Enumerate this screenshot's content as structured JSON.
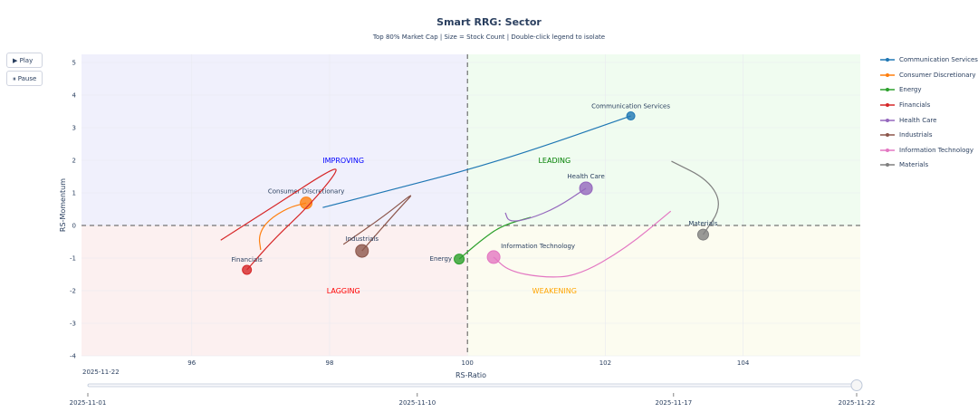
{
  "chart_data": {
    "type": "scatter",
    "title": "Smart RRG: Sector",
    "subtitle": "Top 80% Market Cap | Size = Stock Count | Double-click legend to isolate",
    "xlabel": "RS-Ratio",
    "ylabel": "RS-Momentum",
    "xlim": [
      94.4,
      105.7
    ],
    "ylim": [
      -4,
      5.25
    ],
    "xticks": [
      96,
      98,
      100,
      102,
      104
    ],
    "yticks": [
      -4,
      -3,
      -2,
      -1,
      0,
      1,
      2,
      3,
      4,
      5
    ],
    "quadrants": [
      {
        "label": "IMPROVING",
        "color": "#0000ff",
        "x": 98.2,
        "y": 2
      },
      {
        "label": "LEADING",
        "color": "#008000",
        "x": 101.0,
        "y": 2
      },
      {
        "label": "LAGGING",
        "color": "#ff0000",
        "x": 98.2,
        "y": -2
      },
      {
        "label": "WEAKENING",
        "color": "#ffa500",
        "x": 101.0,
        "y": -2
      }
    ],
    "series": [
      {
        "name": "Communication Services",
        "color": "#1f77b4",
        "size": 7,
        "trail": [
          [
            97.9,
            0.55
          ],
          [
            99,
            1.15
          ],
          [
            100,
            1.7
          ],
          [
            101,
            2.35
          ],
          [
            102.37,
            3.36
          ]
        ]
      },
      {
        "name": "Consumer Discretionary",
        "color": "#ff7f0e",
        "size": 11,
        "trail": [
          [
            97.0,
            -0.75
          ],
          [
            96.97,
            -0.3
          ],
          [
            97.1,
            0.15
          ],
          [
            97.4,
            0.55
          ],
          [
            97.66,
            0.69
          ]
        ]
      },
      {
        "name": "Energy",
        "color": "#2ca02c",
        "size": 9,
        "trail": [
          [
            100.92,
            0.25
          ],
          [
            100.5,
            0.0
          ],
          [
            100.2,
            -0.45
          ],
          [
            99.88,
            -1.03
          ]
        ]
      },
      {
        "name": "Financials",
        "color": "#d62728",
        "size": 8,
        "trail": [
          [
            96.42,
            -0.45
          ],
          [
            97.2,
            0.6
          ],
          [
            98.0,
            1.7
          ],
          [
            98.15,
            1.75
          ],
          [
            97.7,
            0.6
          ],
          [
            97.2,
            -0.4
          ],
          [
            96.8,
            -1.36
          ]
        ]
      },
      {
        "name": "Health Care",
        "color": "#9467bd",
        "size": 12,
        "trail": [
          [
            100.55,
            0.39
          ],
          [
            100.6,
            0.1
          ],
          [
            100.9,
            0.2
          ],
          [
            101.3,
            0.55
          ],
          [
            101.72,
            1.14
          ]
        ]
      },
      {
        "name": "Industrials",
        "color": "#8c564b",
        "size": 12,
        "trail": [
          [
            98.2,
            -0.58
          ],
          [
            98.8,
            0.3
          ],
          [
            99.26,
            1.08
          ],
          [
            99.0,
            0.5
          ],
          [
            98.47,
            -0.78
          ]
        ]
      },
      {
        "name": "Information Technology",
        "color": "#e377c2",
        "size": 12,
        "trail": [
          [
            102.95,
            0.44
          ],
          [
            102.3,
            -0.7
          ],
          [
            101.6,
            -1.55
          ],
          [
            101.1,
            -1.6
          ],
          [
            100.6,
            -1.4
          ],
          [
            100.38,
            -0.97
          ]
        ]
      },
      {
        "name": "Materials",
        "color": "#7f7f7f",
        "size": 10,
        "trail": [
          [
            102.96,
            1.97
          ],
          [
            103.5,
            1.4
          ],
          [
            103.7,
            0.6
          ],
          [
            103.42,
            -0.28
          ]
        ]
      }
    ],
    "slider": {
      "current": "2025-11-22",
      "ticks": [
        "2025-11-01",
        "2025-11-10",
        "2025-11-17",
        "2025-11-22"
      ],
      "value": 1.0
    }
  },
  "buttons": {
    "play": "▶ Play",
    "pause": "⏸ Pause"
  }
}
